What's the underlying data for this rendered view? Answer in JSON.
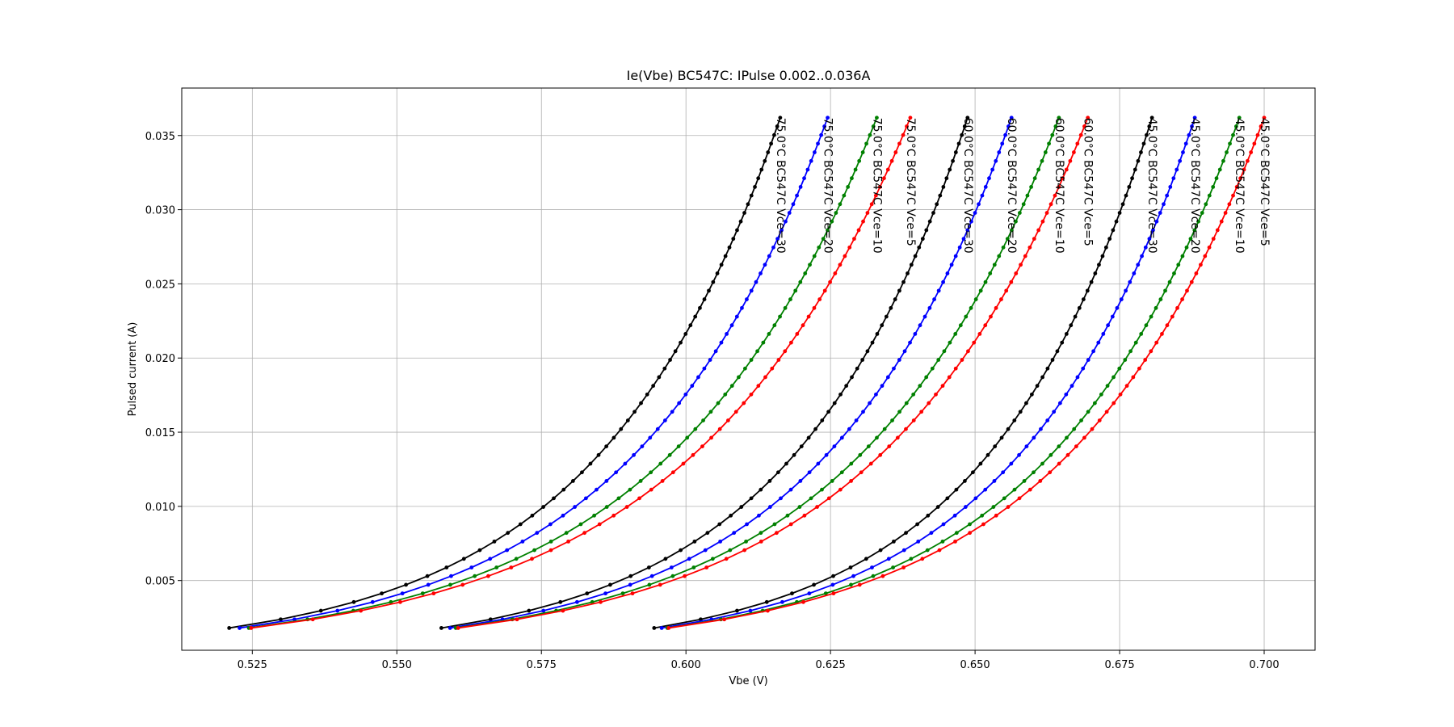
{
  "chart_data": {
    "type": "line",
    "title": "Ie(Vbe) BC547C: IPulse 0.002..0.036A",
    "xlabel": "Vbe (V)",
    "ylabel": "Pulsed current (A)",
    "xlim": [
      0.5128,
      0.7088
    ],
    "ylim": [
      0.0003,
      0.0382
    ],
    "xticks": [
      0.525,
      0.55,
      0.575,
      0.6,
      0.625,
      0.65,
      0.675,
      0.7
    ],
    "xtick_labels": [
      "0.525",
      "0.550",
      "0.575",
      "0.600",
      "0.625",
      "0.650",
      "0.675",
      "0.700"
    ],
    "yticks": [
      0.005,
      0.01,
      0.015,
      0.02,
      0.025,
      0.03,
      0.035
    ],
    "ytick_labels": [
      "0.005",
      "0.010",
      "0.015",
      "0.020",
      "0.025",
      "0.030",
      "0.035"
    ],
    "grid": true,
    "markers": "dot",
    "series": [
      {
        "name": "75.0°C BC547C Vce=30",
        "color": "#000000",
        "v_start": 0.521,
        "v_end": 0.6163,
        "i_start": 0.0018,
        "i_end": 0.0362
      },
      {
        "name": "75.0°C BC547C Vce=20",
        "color": "#0000ff",
        "v_start": 0.5228,
        "v_end": 0.6245,
        "i_start": 0.0018,
        "i_end": 0.0362
      },
      {
        "name": "75.0°C BC547C Vce=10",
        "color": "#008000",
        "v_start": 0.5244,
        "v_end": 0.633,
        "i_start": 0.0018,
        "i_end": 0.0362
      },
      {
        "name": "75.0°C BC547C Vce=5",
        "color": "#ff0000",
        "v_start": 0.5248,
        "v_end": 0.6388,
        "i_start": 0.0018,
        "i_end": 0.0362
      },
      {
        "name": "60.0°C BC547C Vce=30",
        "color": "#000000",
        "v_start": 0.5577,
        "v_end": 0.6487,
        "i_start": 0.0018,
        "i_end": 0.0362
      },
      {
        "name": "60.0°C BC547C Vce=20",
        "color": "#0000ff",
        "v_start": 0.5592,
        "v_end": 0.6563,
        "i_start": 0.0018,
        "i_end": 0.0362
      },
      {
        "name": "60.0°C BC547C Vce=10",
        "color": "#008000",
        "v_start": 0.5602,
        "v_end": 0.6645,
        "i_start": 0.0018,
        "i_end": 0.0362
      },
      {
        "name": "60.0°C BC547C Vce=5",
        "color": "#ff0000",
        "v_start": 0.5606,
        "v_end": 0.6695,
        "i_start": 0.0018,
        "i_end": 0.0362
      },
      {
        "name": "45.0°C BC547C Vce=30",
        "color": "#000000",
        "v_start": 0.5945,
        "v_end": 0.6806,
        "i_start": 0.0018,
        "i_end": 0.0362
      },
      {
        "name": "45.0°C BC547C Vce=20",
        "color": "#0000ff",
        "v_start": 0.5958,
        "v_end": 0.688,
        "i_start": 0.0018,
        "i_end": 0.0362
      },
      {
        "name": "45.0°C BC547C Vce=10",
        "color": "#008000",
        "v_start": 0.5968,
        "v_end": 0.6957,
        "i_start": 0.0018,
        "i_end": 0.0362
      },
      {
        "name": "45.0°C BC547C Vce=5",
        "color": "#ff0000",
        "v_start": 0.597,
        "v_end": 0.7,
        "i_start": 0.0018,
        "i_end": 0.0362
      }
    ]
  }
}
